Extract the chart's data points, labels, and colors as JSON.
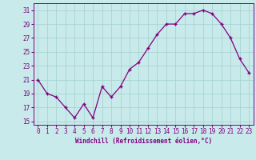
{
  "hours": [
    0,
    1,
    2,
    3,
    4,
    5,
    6,
    7,
    8,
    9,
    10,
    11,
    12,
    13,
    14,
    15,
    16,
    17,
    18,
    19,
    20,
    21,
    22,
    23
  ],
  "values": [
    21,
    19,
    18.5,
    17,
    15.5,
    17.5,
    15.5,
    20,
    18.5,
    20,
    22.5,
    23.5,
    25.5,
    27.5,
    29,
    29,
    30.5,
    30.5,
    31,
    30.5,
    29,
    27,
    24,
    22
  ],
  "line_color": "#800080",
  "marker": "+",
  "bg_color": "#c8eaea",
  "grid_color": "#a8d4d4",
  "xlabel": "Windchill (Refroidissement éolien,°C)",
  "ylim": [
    14.5,
    32
  ],
  "yticks": [
    15,
    17,
    19,
    21,
    23,
    25,
    27,
    29,
    31
  ],
  "label_color": "#800080",
  "tick_fontsize": 5.5,
  "xlabel_fontsize": 5.5
}
